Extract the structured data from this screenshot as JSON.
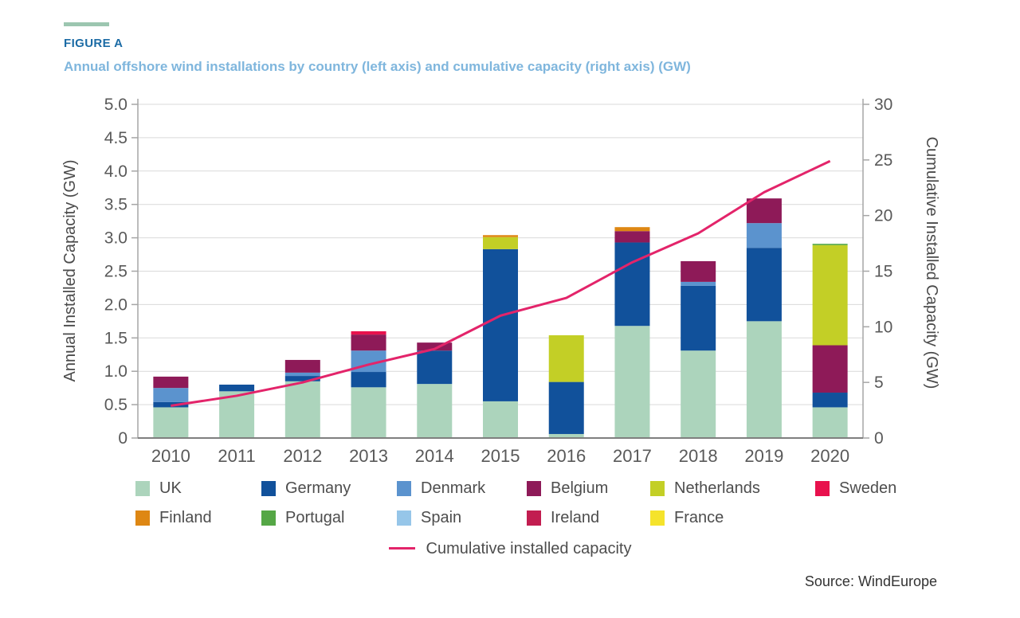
{
  "header": {
    "figure_label": "FIGURE A",
    "subtitle": "Annual offshore wind installations by country (left axis) and cumulative capacity (right axis) (GW)",
    "accent_color": "#9CC6B0",
    "figure_label_color": "#1B6BA5",
    "subtitle_color": "#7FB6DD"
  },
  "source": {
    "label": "Source: WindEurope"
  },
  "chart_data": {
    "type": "bar+line",
    "title": "Annual offshore wind installations by country and cumulative capacity (GW)",
    "categories": [
      "2010",
      "2011",
      "2012",
      "2013",
      "2014",
      "2015",
      "2016",
      "2017",
      "2018",
      "2019",
      "2020"
    ],
    "series": [
      {
        "name": "UK",
        "color": "#ACD4BC",
        "values": [
          0.46,
          0.7,
          0.85,
          0.76,
          0.81,
          0.55,
          0.06,
          1.68,
          1.31,
          1.75,
          0.46
        ]
      },
      {
        "name": "Germany",
        "color": "#11519B",
        "values": [
          0.08,
          0.1,
          0.08,
          0.23,
          0.5,
          2.28,
          0.78,
          1.25,
          0.97,
          1.1,
          0.22
        ]
      },
      {
        "name": "Denmark",
        "color": "#5B93CE",
        "values": [
          0.21,
          0,
          0.05,
          0.32,
          0,
          0,
          0,
          0,
          0.06,
          0.37,
          0
        ]
      },
      {
        "name": "Belgium",
        "color": "#8E1A58",
        "values": [
          0.17,
          0,
          0.19,
          0.24,
          0.12,
          0,
          0,
          0.17,
          0.31,
          0.37,
          0.71
        ]
      },
      {
        "name": "Netherlands",
        "color": "#C3CF26",
        "values": [
          0,
          0,
          0,
          0,
          0,
          0.18,
          0.7,
          0,
          0,
          0,
          1.5
        ]
      },
      {
        "name": "Sweden",
        "color": "#E8114D",
        "values": [
          0,
          0,
          0,
          0.05,
          0,
          0,
          0,
          0,
          0,
          0,
          0
        ]
      },
      {
        "name": "Finland",
        "color": "#DE8713",
        "values": [
          0,
          0,
          0,
          0,
          0,
          0.03,
          0,
          0.06,
          0,
          0,
          0
        ]
      },
      {
        "name": "Portugal",
        "color": "#55A746",
        "values": [
          0,
          0,
          0,
          0,
          0,
          0,
          0,
          0,
          0,
          0,
          0.02
        ]
      },
      {
        "name": "Spain",
        "color": "#96C6E9",
        "values": [
          0,
          0,
          0,
          0,
          0,
          0,
          0,
          0,
          0,
          0,
          0
        ]
      },
      {
        "name": "Ireland",
        "color": "#C21D50",
        "values": [
          0,
          0,
          0,
          0,
          0,
          0,
          0,
          0,
          0,
          0,
          0
        ]
      },
      {
        "name": "France",
        "color": "#F5E32B",
        "values": [
          0,
          0,
          0,
          0,
          0,
          0,
          0,
          0,
          0,
          0,
          0
        ]
      }
    ],
    "line_series": {
      "name": "Cumulative installed capacity",
      "color": "#E3246A",
      "values": [
        2.9,
        3.8,
        5.0,
        6.6,
        8.0,
        11.0,
        12.6,
        15.8,
        18.4,
        22.1,
        24.9
      ]
    },
    "left_axis": {
      "label": "Annual Installed Capacity (GW)",
      "min": 0,
      "max": 5,
      "tick_values": [
        0,
        0.5,
        1.0,
        1.5,
        2.0,
        2.5,
        3.0,
        3.5,
        4.0,
        4.5,
        5.0
      ],
      "tick_labels": [
        "0",
        "0.5",
        "1.0",
        "1.5",
        "2.0",
        "2.5",
        "3.0",
        "3.5",
        "4.0",
        "4.5",
        "5.0"
      ]
    },
    "right_axis": {
      "label": "Cumulative Installed Capacity (GW)",
      "min": 0,
      "max": 30,
      "tick_values": [
        0,
        5,
        10,
        15,
        20,
        25,
        30
      ],
      "tick_labels": [
        "0",
        "5",
        "10",
        "15",
        "20",
        "25",
        "30"
      ]
    },
    "grid": true,
    "legend_position": "bottom",
    "legend_rows": [
      6,
      5
    ]
  }
}
